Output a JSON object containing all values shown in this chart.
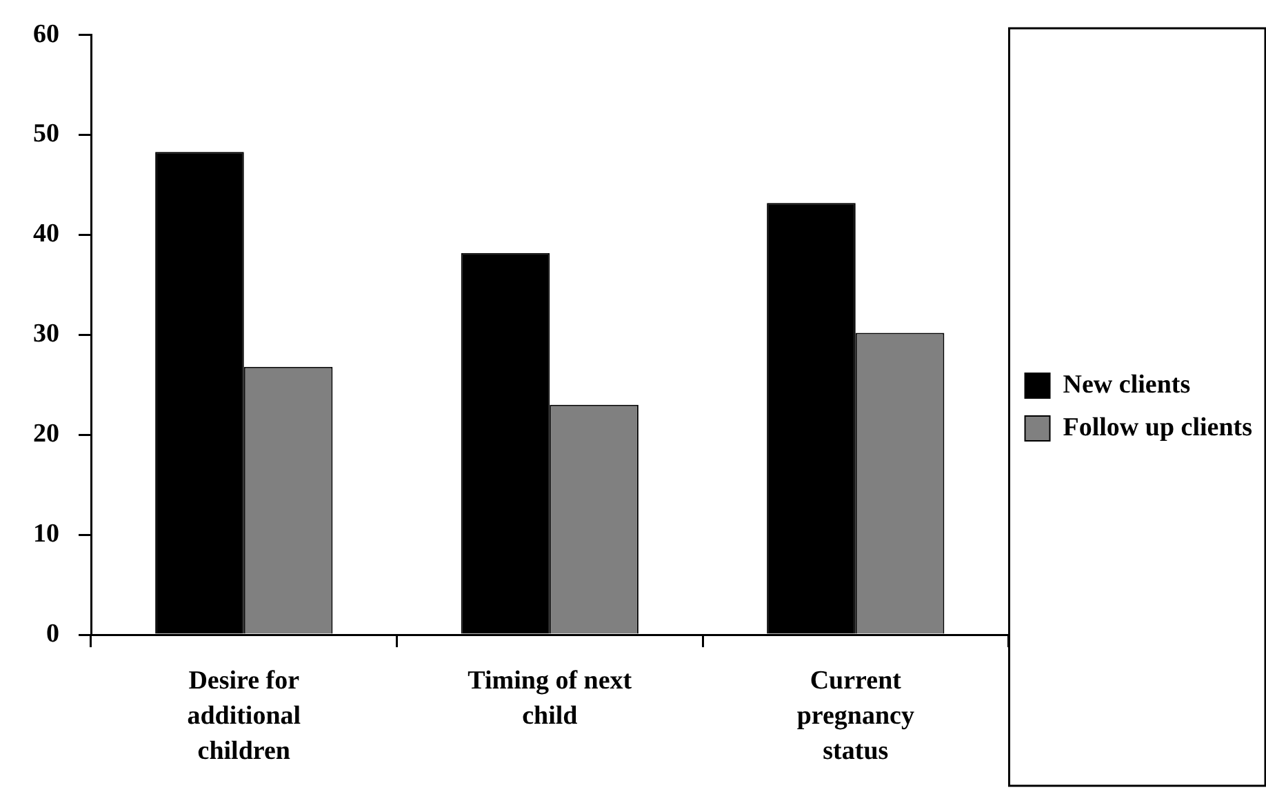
{
  "chart_data": {
    "type": "bar",
    "categories": [
      "Desire for additional children",
      "Timing of next child",
      "Current pregnancy status"
    ],
    "series": [
      {
        "name": "New clients",
        "color": "#000000",
        "values": [
          48.3,
          38.2,
          43.2
        ]
      },
      {
        "name": "Follow up clients",
        "color": "#808080",
        "values": [
          26.8,
          23.0,
          30.2
        ]
      }
    ],
    "ylim": [
      0,
      60
    ],
    "yticks": [
      0,
      10,
      20,
      30,
      40,
      50,
      60
    ],
    "grid": false,
    "legend": "right"
  }
}
